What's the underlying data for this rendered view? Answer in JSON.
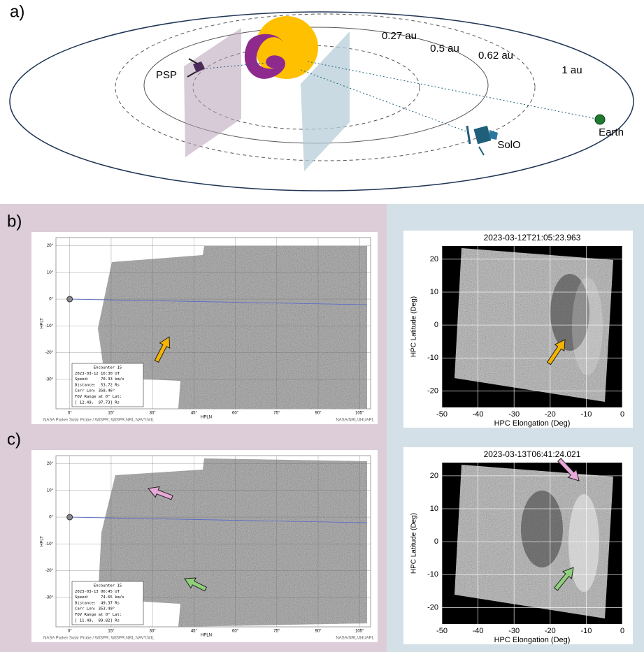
{
  "panel_a": {
    "label": "a)",
    "bodies": {
      "psp": "PSP",
      "solo": "SolO",
      "earth": "Earth"
    },
    "orbits": [
      "0.27 au",
      "0.5 au",
      "0.62 au",
      "1 au"
    ]
  },
  "rows": [
    {
      "label": "b)",
      "wispr": {
        "xlabel": "HPLN",
        "ylabel": "HPLT",
        "xlim": [
          -5,
          109
        ],
        "ylim": [
          -41,
          23
        ],
        "xticks": [
          {
            "value": 0,
            "label": "0°"
          },
          {
            "value": 15,
            "label": "15°"
          },
          {
            "value": 30,
            "label": "30°"
          },
          {
            "value": 45,
            "label": "45°"
          },
          {
            "value": 60,
            "label": "60°"
          },
          {
            "value": 75,
            "label": "75°"
          },
          {
            "value": 90,
            "label": "90°"
          },
          {
            "value": 105,
            "label": "105°"
          }
        ],
        "yticks": [
          {
            "value": 20,
            "label": "20°"
          },
          {
            "value": 10,
            "label": "10°"
          },
          {
            "value": 0,
            "label": "0°"
          },
          {
            "value": -10,
            "label": "-10°"
          },
          {
            "value": -20,
            "label": "-20°"
          },
          {
            "value": -30,
            "label": "-30°"
          }
        ],
        "credit_left": "NASA Parker Solar Probe / WISPR; WISPR.NRL.NAVY.MIL",
        "credit_right": "NASA/NRL/JHUAPL",
        "info": [
          "Encounter 15",
          "2023-03-12 16:30 UT",
          "Speed:     70.33 km/s",
          "Distance:  53.72 Rs",
          "Carr Lon: 358.46°",
          "FOV Range at 0° Lat:",
          "[ 12.49,  97.73] Rs"
        ]
      },
      "solo": {
        "title": "2023-03-12T21:05:23.963",
        "xlabel": "HPC Elongation (Deg)",
        "ylabel": "HPC Latitude (Deg)",
        "xlim": [
          -50,
          0
        ],
        "ylim": [
          -25,
          24
        ],
        "xticks": [
          -50,
          -40,
          -30,
          -20,
          -10,
          0
        ],
        "yticks": [
          -20,
          -10,
          0,
          10,
          20
        ]
      }
    },
    {
      "label": "c)",
      "wispr": {
        "xlabel": "HPLN",
        "ylabel": "HPLT",
        "xlim": [
          -5,
          109
        ],
        "ylim": [
          -41,
          23
        ],
        "xticks": [
          {
            "value": 0,
            "label": "0°"
          },
          {
            "value": 15,
            "label": "15°"
          },
          {
            "value": 30,
            "label": "30°"
          },
          {
            "value": 45,
            "label": "45°"
          },
          {
            "value": 60,
            "label": "60°"
          },
          {
            "value": 75,
            "label": "75°"
          },
          {
            "value": 90,
            "label": "90°"
          },
          {
            "value": 105,
            "label": "105°"
          }
        ],
        "yticks": [
          {
            "value": 20,
            "label": "20°"
          },
          {
            "value": 10,
            "label": "10°"
          },
          {
            "value": 0,
            "label": "0°"
          },
          {
            "value": -10,
            "label": "-10°"
          },
          {
            "value": -20,
            "label": "-20°"
          },
          {
            "value": -30,
            "label": "-30°"
          }
        ],
        "credit_left": "NASA Parker Solar Probe / WISPR; WISPR.NRL.NAVY.MIL",
        "credit_right": "NASA/NRL/JHUAPL",
        "info": [
          "Encounter 15",
          "2023-03-13 06:45 UT",
          "Speed:     74.65 km/s",
          "Distance:  49.37 Rs",
          "Carr Lon: 353.49°",
          "FOV Range at 0° Lat:",
          "[ 11.49,  89.82] Rs"
        ]
      },
      "solo": {
        "title": "2023-03-13T06:41:24.021",
        "xlabel": "HPC Elongation (Deg)",
        "ylabel": "HPC Latitude (Deg)",
        "xlim": [
          -50,
          0
        ],
        "ylim": [
          -25,
          24
        ],
        "xticks": [
          -50,
          -40,
          -30,
          -20,
          -10,
          0
        ],
        "yticks": [
          -20,
          -10,
          0,
          10,
          20
        ]
      }
    }
  ]
}
